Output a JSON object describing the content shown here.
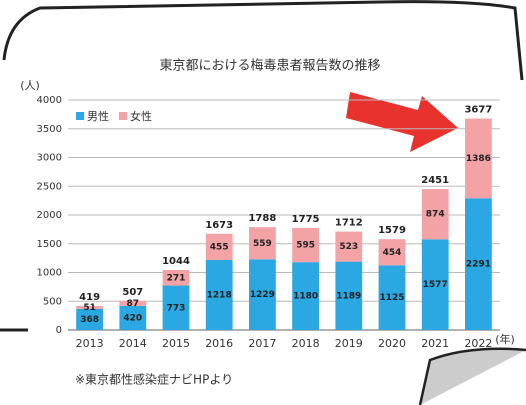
{
  "chart_data": {
    "type": "stacked_bar",
    "title": "東京都における梅毒患者報告数の推移",
    "y_label": "(人)",
    "x_label": "(年)",
    "source": "※東京都性感染症ナビHPより",
    "categories": [
      "2013",
      "2014",
      "2015",
      "2016",
      "2017",
      "2018",
      "2019",
      "2020",
      "2021",
      "2022"
    ],
    "series": [
      {
        "name": "男性",
        "color": "#2ba7e2",
        "values": [
          368,
          420,
          773,
          1218,
          1229,
          1180,
          1189,
          1125,
          1577,
          2291
        ]
      },
      {
        "name": "女性",
        "color": "#f3a3a6",
        "values": [
          51,
          87,
          271,
          455,
          559,
          595,
          523,
          454,
          874,
          1386
        ]
      }
    ],
    "totals": [
      419,
      507,
      1044,
      1673,
      1788,
      1775,
      1712,
      1579,
      2451,
      3677
    ],
    "ylim": [
      0,
      4000
    ],
    "yticks": [
      0,
      500,
      1000,
      1500,
      2000,
      2500,
      3000,
      3500,
      4000
    ],
    "grid": true,
    "legend": "top-left"
  }
}
